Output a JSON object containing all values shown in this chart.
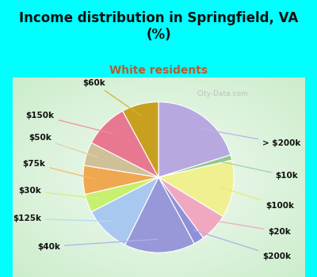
{
  "title": "Income distribution in Springfield, VA\n(%)",
  "subtitle": "White residents",
  "title_color": "#111111",
  "subtitle_color": "#b06030",
  "bg_color": "#00ffff",
  "chart_bg": "#d8f0e8",
  "labels": [
    "> $200k",
    "$10k",
    "$100k",
    "$20k",
    "$200k",
    "$40k",
    "$125k",
    "$30k",
    "$75k",
    "$50k",
    "$150k",
    "$60k"
  ],
  "values": [
    18.0,
    1.0,
    11.0,
    5.5,
    2.0,
    13.5,
    9.0,
    3.5,
    5.5,
    4.5,
    8.5,
    7.0
  ],
  "colors": [
    "#b8a8e0",
    "#90c890",
    "#f0f090",
    "#f0a8c0",
    "#9090d8",
    "#9898d8",
    "#a8c8f0",
    "#c8f070",
    "#f0a850",
    "#d0c098",
    "#e87890",
    "#c8a020"
  ],
  "label_fontsize": 7.5,
  "title_fontsize": 12,
  "subtitle_fontsize": 10,
  "watermark": "City-Data.com"
}
